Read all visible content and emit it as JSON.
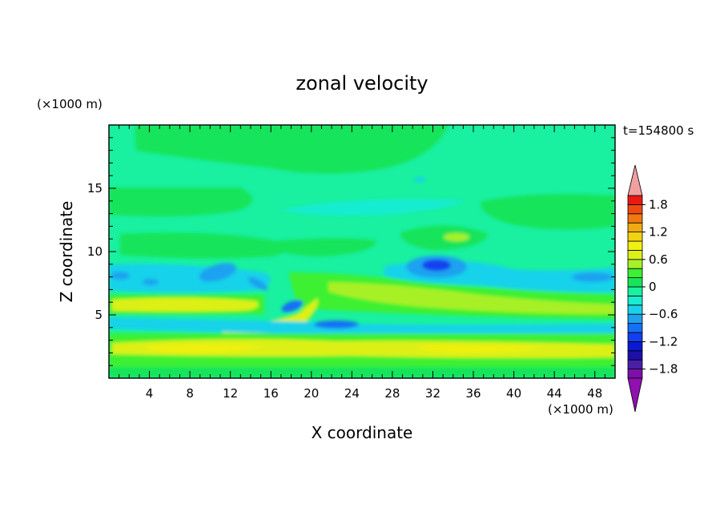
{
  "chart_data": {
    "type": "heatmap",
    "title": "zonal velocity",
    "xlabel": "X coordinate",
    "ylabel": "Z coordinate",
    "x_unit": "(×1000 m)",
    "y_unit": "(×1000 m)",
    "time_label": "t=154800 s",
    "xlim": [
      0,
      50
    ],
    "ylim": [
      0,
      20
    ],
    "x_ticks": [
      4,
      8,
      12,
      16,
      20,
      24,
      28,
      32,
      36,
      40,
      44,
      48
    ],
    "y_ticks": [
      5,
      10,
      15
    ],
    "colorbar": {
      "levels": [
        -2.0,
        -1.8,
        -1.6,
        -1.4,
        -1.2,
        -1.0,
        -0.8,
        -0.6,
        -0.4,
        -0.2,
        0.0,
        0.2,
        0.4,
        0.6,
        0.8,
        1.0,
        1.2,
        1.4,
        1.6,
        1.8,
        2.0
      ],
      "colors": [
        "#7e0fa8",
        "#4a1fa8",
        "#1c10a8",
        "#0a1ad2",
        "#1240f0",
        "#1470f4",
        "#1ea2f0",
        "#19d2ea",
        "#19ecd0",
        "#19f0a0",
        "#18e45a",
        "#3cf032",
        "#a8f028",
        "#dcf018",
        "#f0f010",
        "#f0d210",
        "#f0aa10",
        "#f07810",
        "#f04a10",
        "#e81a12"
      ],
      "under_color": "#9010b0",
      "over_color": "#f0a0a0",
      "tick_labels": [
        "1.8",
        "1.2",
        "0.6",
        "0",
        "−0.6",
        "−1.2",
        "−1.8"
      ],
      "tick_values": [
        1.8,
        1.2,
        0.6,
        0.0,
        -0.6,
        -1.2,
        -1.8
      ]
    },
    "grid": false,
    "legend": "right"
  }
}
